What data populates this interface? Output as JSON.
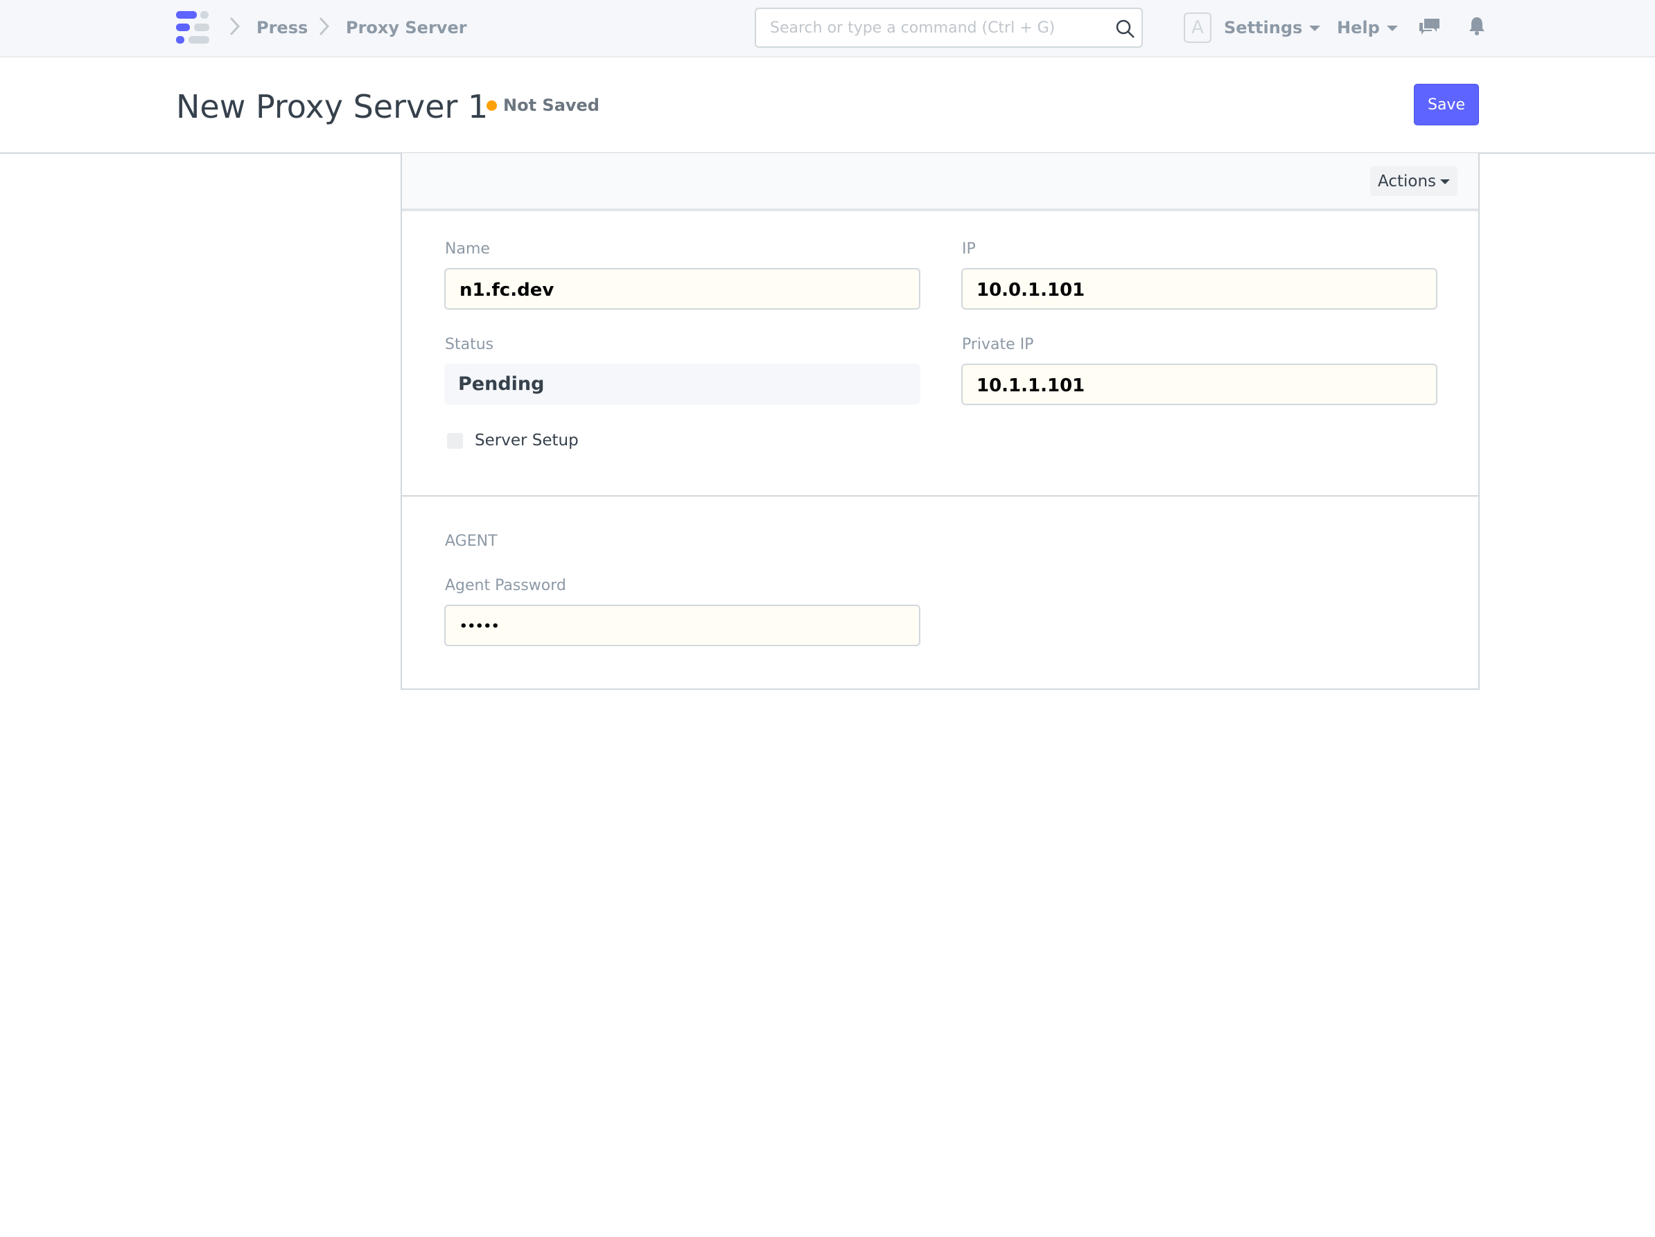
{
  "navbar": {
    "breadcrumbs": [
      "Press",
      "Proxy Server"
    ],
    "search_placeholder": "Search or type a command (Ctrl + G)",
    "avatar_letter": "A",
    "settings": "Settings",
    "help": "Help",
    "icons": [
      "app-logo",
      "search-icon",
      "chat-icon",
      "bell-icon"
    ]
  },
  "header": {
    "title": "New Proxy Server 1",
    "status": "Not Saved",
    "status_color": "#ffa00a",
    "save_label": "Save",
    "accent": "#5e64ff"
  },
  "toolbar": {
    "actions_label": "Actions"
  },
  "form": {
    "name_label": "Name",
    "name_value": "n1.fc.dev",
    "ip_label": "IP",
    "ip_value": "10.0.1.101",
    "status_label": "Status",
    "status_value": "Pending",
    "private_ip_label": "Private IP",
    "private_ip_value": "10.1.1.101",
    "server_setup_label": "Server Setup",
    "server_setup_checked": false,
    "agent_section": "AGENT",
    "agent_password_label": "Agent Password",
    "agent_password_value": "•••••"
  }
}
